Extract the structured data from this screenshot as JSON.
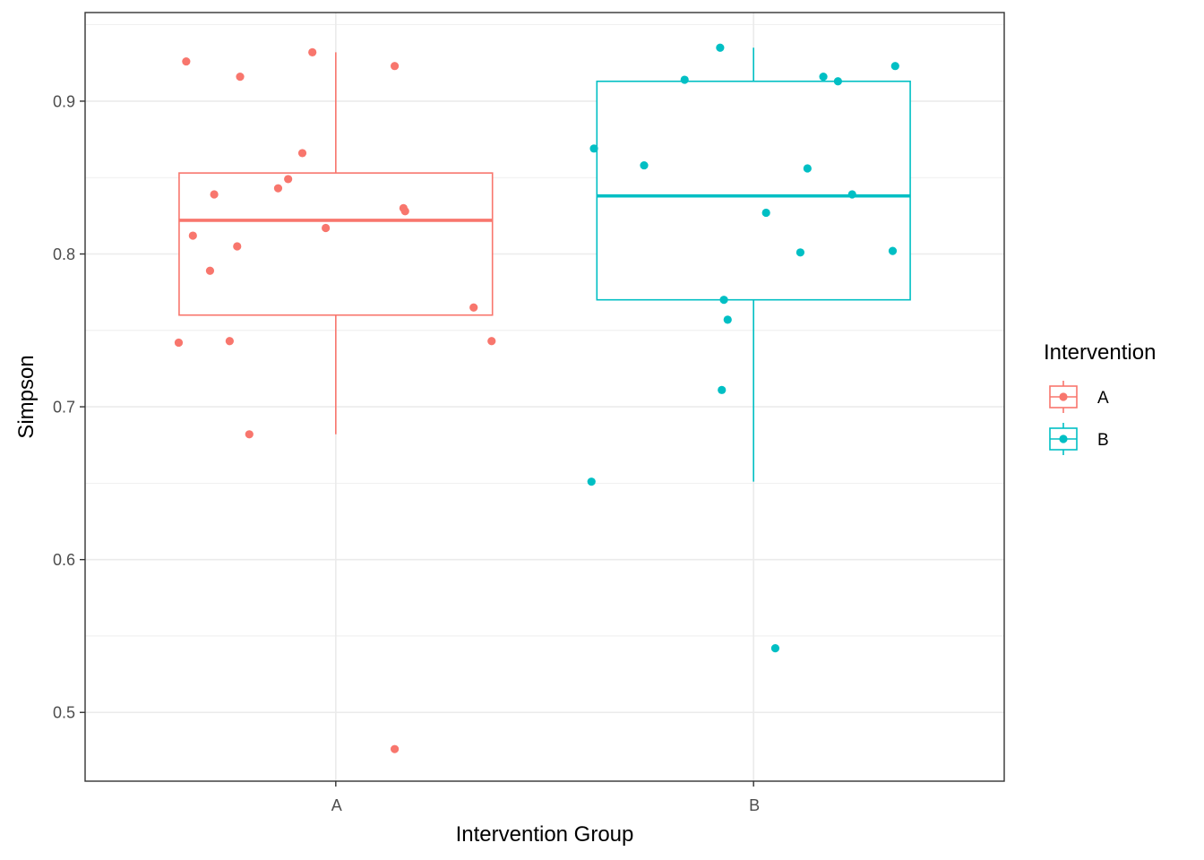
{
  "chart_data": {
    "type": "boxplot",
    "xlabel": "Intervention Group",
    "ylabel": "Simpson",
    "ylim": [
      0.455,
      0.958
    ],
    "yticks": [
      0.5,
      0.6,
      0.7,
      0.8,
      0.9
    ],
    "ytick_labels": [
      "0.5",
      "0.6",
      "0.7",
      "0.8",
      "0.9"
    ],
    "categories": [
      "A",
      "B"
    ],
    "grid": true,
    "legend": {
      "title": "Intervention",
      "position": "right",
      "entries": [
        {
          "label": "A",
          "color": "#F8766D"
        },
        {
          "label": "B",
          "color": "#00BFC4"
        }
      ]
    },
    "groups": [
      {
        "name": "A",
        "color": "#F8766D",
        "box": {
          "whisker_low": 0.682,
          "q1": 0.76,
          "median": 0.822,
          "q3": 0.853,
          "whisker_high": 0.932
        },
        "points": [
          {
            "x": -0.376,
            "y": 0.742
          },
          {
            "x": -0.358,
            "y": 0.926
          },
          {
            "x": -0.342,
            "y": 0.812
          },
          {
            "x": -0.301,
            "y": 0.789
          },
          {
            "x": -0.291,
            "y": 0.839
          },
          {
            "x": -0.254,
            "y": 0.743
          },
          {
            "x": -0.236,
            "y": 0.805
          },
          {
            "x": -0.229,
            "y": 0.916
          },
          {
            "x": -0.207,
            "y": 0.682
          },
          {
            "x": -0.138,
            "y": 0.843
          },
          {
            "x": -0.114,
            "y": 0.849
          },
          {
            "x": -0.08,
            "y": 0.866
          },
          {
            "x": -0.056,
            "y": 0.932
          },
          {
            "x": -0.024,
            "y": 0.817
          },
          {
            "x": 0.141,
            "y": 0.923
          },
          {
            "x": 0.141,
            "y": 0.476
          },
          {
            "x": 0.162,
            "y": 0.83
          },
          {
            "x": 0.166,
            "y": 0.828
          },
          {
            "x": 0.33,
            "y": 0.765
          },
          {
            "x": 0.373,
            "y": 0.743
          }
        ]
      },
      {
        "name": "B",
        "color": "#00BFC4",
        "box": {
          "whisker_low": 0.651,
          "q1": 0.77,
          "median": 0.838,
          "q3": 0.913,
          "whisker_high": 0.935
        },
        "points": [
          {
            "x": -0.388,
            "y": 0.651
          },
          {
            "x": -0.382,
            "y": 0.869
          },
          {
            "x": -0.262,
            "y": 0.858
          },
          {
            "x": -0.165,
            "y": 0.914
          },
          {
            "x": -0.08,
            "y": 0.935
          },
          {
            "x": -0.076,
            "y": 0.711
          },
          {
            "x": -0.071,
            "y": 0.77
          },
          {
            "x": -0.062,
            "y": 0.757
          },
          {
            "x": 0.03,
            "y": 0.827
          },
          {
            "x": 0.052,
            "y": 0.542
          },
          {
            "x": 0.112,
            "y": 0.801
          },
          {
            "x": 0.129,
            "y": 0.856
          },
          {
            "x": 0.167,
            "y": 0.916
          },
          {
            "x": 0.202,
            "y": 0.913
          },
          {
            "x": 0.236,
            "y": 0.839
          },
          {
            "x": 0.333,
            "y": 0.802
          },
          {
            "x": 0.339,
            "y": 0.923
          }
        ]
      }
    ]
  }
}
